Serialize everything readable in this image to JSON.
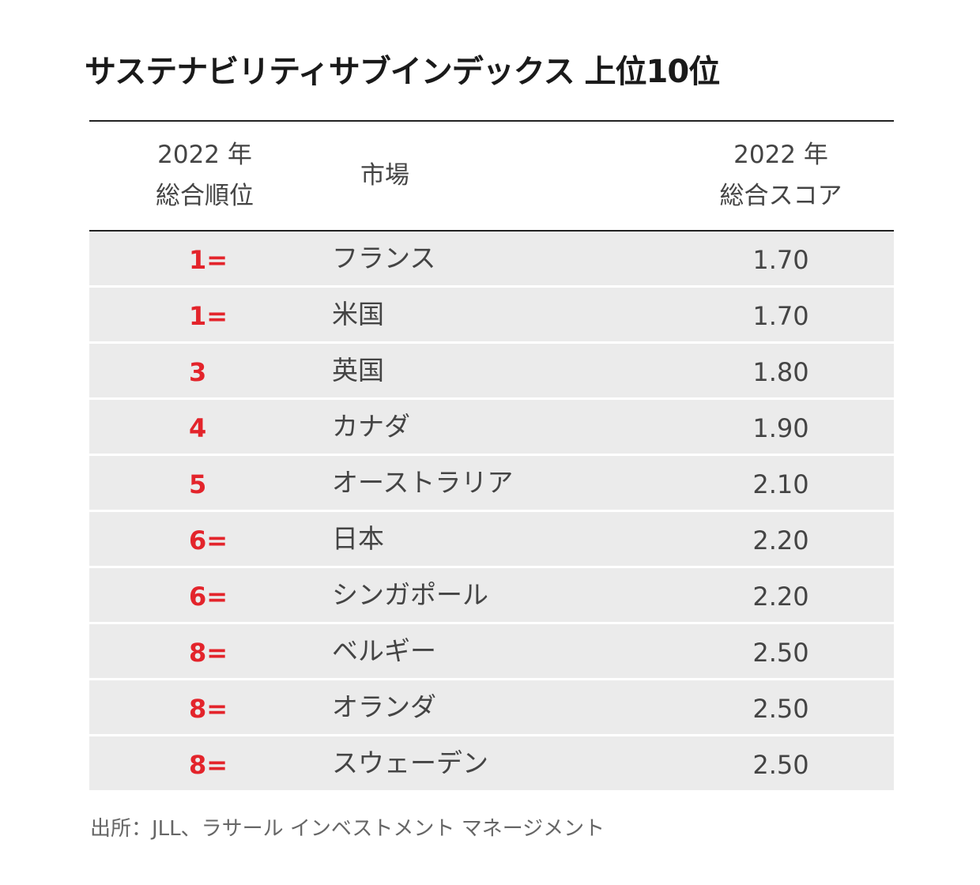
{
  "title": "サステナビリティサブインデックス 上位10位",
  "table": {
    "headers": {
      "rank_line1": "2022 年",
      "rank_line2": "総合順位",
      "market": "市場",
      "score_line1": "2022 年",
      "score_line2": "総合スコア"
    },
    "rows": [
      {
        "rank": "1=",
        "market": "フランス",
        "score": "1.70"
      },
      {
        "rank": "1=",
        "market": "米国",
        "score": "1.70"
      },
      {
        "rank": "3",
        "market": "英国",
        "score": "1.80"
      },
      {
        "rank": "4",
        "market": "カナダ",
        "score": "1.90"
      },
      {
        "rank": "5",
        "market": "オーストラリア",
        "score": "2.10"
      },
      {
        "rank": "6=",
        "market": "日本",
        "score": "2.20"
      },
      {
        "rank": "6=",
        "market": "シンガポール",
        "score": "2.20"
      },
      {
        "rank": "8=",
        "market": "ベルギー",
        "score": "2.50"
      },
      {
        "rank": "8=",
        "market": "オランダ",
        "score": "2.50"
      },
      {
        "rank": "8=",
        "market": "スウェーデン",
        "score": "2.50"
      }
    ]
  },
  "source": "出所：JLL、ラサール インベストメント マネージメント",
  "colors": {
    "rank_red": "#e3242b",
    "row_bg": "#ebebeb",
    "rule": "#222222"
  }
}
